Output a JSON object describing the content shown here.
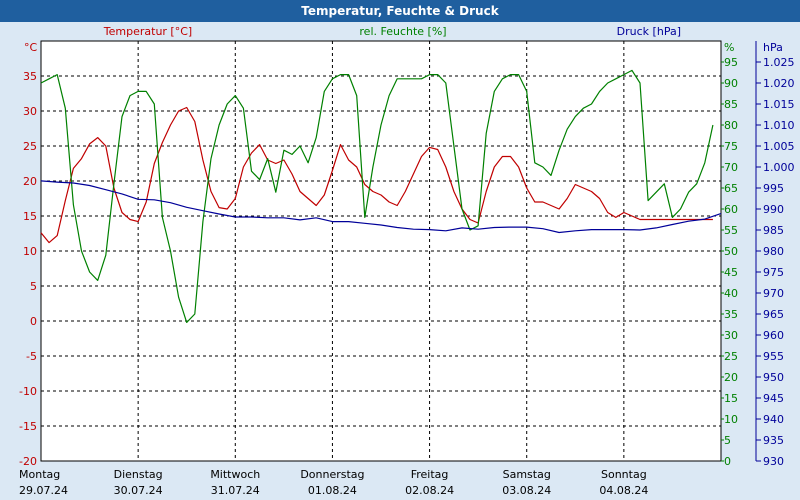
{
  "title": "Temperatur, Feuchte & Druck",
  "colors": {
    "title_bar": "#1f5f9f",
    "background": "#dbe8f4",
    "plot_background": "#ffffff",
    "temperature": "#c00000",
    "humidity": "#008000",
    "pressure": "#000099",
    "grid": "#000000"
  },
  "chart_data": {
    "type": "line",
    "title": "Temperatur, Feuchte & Druck",
    "grid": true,
    "x_range": [
      "29.07.24 00:00",
      "05.08.24 00:00"
    ],
    "x_days": [
      {
        "weekday": "Montag",
        "date": "29.07.24"
      },
      {
        "weekday": "Dienstag",
        "date": "30.07.24"
      },
      {
        "weekday": "Mittwoch",
        "date": "31.07.24"
      },
      {
        "weekday": "Donnerstag",
        "date": "01.08.24"
      },
      {
        "weekday": "Freitag",
        "date": "02.08.24"
      },
      {
        "weekday": "Samstag",
        "date": "03.08.24"
      },
      {
        "weekday": "Sonntag",
        "date": "04.08.24"
      }
    ],
    "axes": {
      "temperature": {
        "label": "Temperatur [°C]",
        "unit": "°C",
        "range": [
          -20,
          40
        ],
        "ticks": [
          -20,
          -15,
          -10,
          -5,
          0,
          5,
          10,
          15,
          20,
          25,
          30,
          35
        ]
      },
      "humidity": {
        "label": "rel. Feuchte [%]",
        "unit": "%",
        "range": [
          0,
          100
        ],
        "ticks": [
          0,
          5,
          10,
          15,
          20,
          25,
          30,
          35,
          40,
          45,
          50,
          55,
          60,
          65,
          70,
          75,
          80,
          85,
          90,
          95
        ]
      },
      "pressure": {
        "label": "Druck [hPa]",
        "unit": "hPa",
        "range": [
          930,
          1030
        ],
        "ticks": [
          "930",
          "935",
          "940",
          "945",
          "950",
          "955",
          "960",
          "965",
          "970",
          "975",
          "980",
          "985",
          "990",
          "995",
          "1.000",
          "1.005",
          "1.010",
          "1.015",
          "1.020",
          "1.025"
        ]
      }
    },
    "series": [
      {
        "name": "Temperatur [°C]",
        "axis": "temperature",
        "x": [
          "29.07.24 00:00",
          "29.07.24 02:00",
          "29.07.24 04:00",
          "29.07.24 06:00",
          "29.07.24 08:00",
          "29.07.24 10:00",
          "29.07.24 12:00",
          "29.07.24 14:00",
          "29.07.24 16:00",
          "29.07.24 18:00",
          "29.07.24 20:00",
          "29.07.24 22:00",
          "30.07.24 00:00",
          "30.07.24 02:00",
          "30.07.24 04:00",
          "30.07.24 06:00",
          "30.07.24 08:00",
          "30.07.24 10:00",
          "30.07.24 12:00",
          "30.07.24 14:00",
          "30.07.24 16:00",
          "30.07.24 18:00",
          "30.07.24 20:00",
          "30.07.24 22:00",
          "31.07.24 00:00",
          "31.07.24 02:00",
          "31.07.24 04:00",
          "31.07.24 06:00",
          "31.07.24 08:00",
          "31.07.24 10:00",
          "31.07.24 12:00",
          "31.07.24 14:00",
          "31.07.24 16:00",
          "31.07.24 18:00",
          "31.07.24 20:00",
          "31.07.24 22:00",
          "01.08.24 00:00",
          "01.08.24 02:00",
          "01.08.24 04:00",
          "01.08.24 06:00",
          "01.08.24 08:00",
          "01.08.24 10:00",
          "01.08.24 12:00",
          "01.08.24 14:00",
          "01.08.24 16:00",
          "01.08.24 18:00",
          "01.08.24 20:00",
          "01.08.24 22:00",
          "02.08.24 00:00",
          "02.08.24 02:00",
          "02.08.24 04:00",
          "02.08.24 06:00",
          "02.08.24 08:00",
          "02.08.24 10:00",
          "02.08.24 12:00",
          "02.08.24 14:00",
          "02.08.24 16:00",
          "02.08.24 18:00",
          "02.08.24 20:00",
          "02.08.24 22:00",
          "03.08.24 00:00",
          "03.08.24 02:00",
          "03.08.24 04:00",
          "03.08.24 06:00",
          "03.08.24 08:00",
          "03.08.24 10:00",
          "03.08.24 12:00",
          "03.08.24 14:00",
          "03.08.24 16:00",
          "03.08.24 18:00",
          "03.08.24 20:00",
          "03.08.24 22:00",
          "04.08.24 00:00",
          "04.08.24 02:00",
          "04.08.24 04:00",
          "04.08.24 06:00",
          "04.08.24 08:00",
          "04.08.24 10:00",
          "04.08.24 12:00",
          "04.08.24 14:00",
          "04.08.24 16:00",
          "04.08.24 18:00",
          "04.08.24 20:00",
          "04.08.24 22:00"
        ],
        "values": [
          12.6,
          11.2,
          12.2,
          17.2,
          21.8,
          23.2,
          25.3,
          26.2,
          25.0,
          19.0,
          15.5,
          14.5,
          14.2,
          17.0,
          22.5,
          25.5,
          28.0,
          30.0,
          30.5,
          28.5,
          23.0,
          18.5,
          16.2,
          16.0,
          17.5,
          22.0,
          24.0,
          25.2,
          23.0,
          22.5,
          23.0,
          21.0,
          18.5,
          17.5,
          16.5,
          18.0,
          21.5,
          25.2,
          23.0,
          22.0,
          19.5,
          18.5,
          18.0,
          17.0,
          16.5,
          18.5,
          21.0,
          23.5,
          24.8,
          24.5,
          22.0,
          18.5,
          16.0,
          14.5,
          14.0,
          18.5,
          22.0,
          23.5,
          23.5,
          22.0,
          19.0,
          17.0,
          17.0,
          16.5,
          16.0,
          17.5,
          19.5,
          19.0,
          18.5,
          17.5,
          15.5,
          14.8,
          15.5,
          15.0,
          14.5,
          14.5,
          14.5,
          14.5,
          14.5,
          14.5,
          14.5,
          14.5,
          14.5,
          14.5
        ]
      },
      {
        "name": "rel. Feuchte [%]",
        "axis": "humidity",
        "x": [
          "29.07.24 00:00",
          "29.07.24 02:00",
          "29.07.24 04:00",
          "29.07.24 06:00",
          "29.07.24 08:00",
          "29.07.24 10:00",
          "29.07.24 12:00",
          "29.07.24 14:00",
          "29.07.24 16:00",
          "29.07.24 18:00",
          "29.07.24 20:00",
          "29.07.24 22:00",
          "30.07.24 00:00",
          "30.07.24 02:00",
          "30.07.24 04:00",
          "30.07.24 06:00",
          "30.07.24 08:00",
          "30.07.24 10:00",
          "30.07.24 12:00",
          "30.07.24 14:00",
          "30.07.24 16:00",
          "30.07.24 18:00",
          "30.07.24 20:00",
          "30.07.24 22:00",
          "31.07.24 00:00",
          "31.07.24 02:00",
          "31.07.24 04:00",
          "31.07.24 06:00",
          "31.07.24 08:00",
          "31.07.24 10:00",
          "31.07.24 12:00",
          "31.07.24 14:00",
          "31.07.24 16:00",
          "31.07.24 18:00",
          "31.07.24 20:00",
          "31.07.24 22:00",
          "01.08.24 00:00",
          "01.08.24 02:00",
          "01.08.24 04:00",
          "01.08.24 06:00",
          "01.08.24 08:00",
          "01.08.24 10:00",
          "01.08.24 12:00",
          "01.08.24 14:00",
          "01.08.24 16:00",
          "01.08.24 18:00",
          "01.08.24 20:00",
          "01.08.24 22:00",
          "02.08.24 00:00",
          "02.08.24 02:00",
          "02.08.24 04:00",
          "02.08.24 06:00",
          "02.08.24 08:00",
          "02.08.24 10:00",
          "02.08.24 12:00",
          "02.08.24 14:00",
          "02.08.24 16:00",
          "02.08.24 18:00",
          "02.08.24 20:00",
          "02.08.24 22:00",
          "03.08.24 00:00",
          "03.08.24 02:00",
          "03.08.24 04:00",
          "03.08.24 06:00",
          "03.08.24 08:00",
          "03.08.24 10:00",
          "03.08.24 12:00",
          "03.08.24 14:00",
          "03.08.24 16:00",
          "03.08.24 18:00",
          "03.08.24 20:00",
          "03.08.24 22:00",
          "04.08.24 00:00",
          "04.08.24 02:00",
          "04.08.24 04:00",
          "04.08.24 06:00",
          "04.08.24 08:00",
          "04.08.24 10:00",
          "04.08.24 12:00",
          "04.08.24 14:00",
          "04.08.24 16:00",
          "04.08.24 18:00",
          "04.08.24 20:00",
          "04.08.24 22:00"
        ],
        "values": [
          90,
          91,
          92,
          84,
          61,
          50,
          45,
          43,
          49,
          66,
          82,
          87,
          88,
          88,
          85,
          58,
          50,
          39,
          33,
          35,
          57,
          72,
          80,
          85,
          87,
          84,
          69,
          67,
          72,
          64,
          74,
          73,
          75,
          71,
          77,
          88,
          91,
          92,
          92,
          87,
          58,
          70,
          80,
          87,
          91,
          91,
          91,
          91,
          92,
          92,
          90,
          75,
          60,
          55,
          56,
          78,
          88,
          91,
          92,
          92,
          88,
          71,
          70,
          68,
          74,
          79,
          82,
          84,
          85,
          88,
          90,
          91,
          92,
          93,
          90,
          62,
          64,
          66,
          58,
          60,
          64,
          66,
          71,
          80
        ]
      },
      {
        "name": "Druck [hPa]",
        "axis": "pressure",
        "x": [
          "29.07.24 00:00",
          "29.07.24 04:00",
          "29.07.24 08:00",
          "29.07.24 12:00",
          "29.07.24 16:00",
          "29.07.24 20:00",
          "30.07.24 00:00",
          "30.07.24 04:00",
          "30.07.24 08:00",
          "30.07.24 12:00",
          "30.07.24 16:00",
          "30.07.24 20:00",
          "31.07.24 00:00",
          "31.07.24 04:00",
          "31.07.24 08:00",
          "31.07.24 12:00",
          "31.07.24 16:00",
          "31.07.24 20:00",
          "01.08.24 00:00",
          "01.08.24 04:00",
          "01.08.24 08:00",
          "01.08.24 12:00",
          "01.08.24 16:00",
          "01.08.24 20:00",
          "02.08.24 00:00",
          "02.08.24 04:00",
          "02.08.24 08:00",
          "02.08.24 12:00",
          "02.08.24 16:00",
          "02.08.24 20:00",
          "03.08.24 00:00",
          "03.08.24 04:00",
          "03.08.24 08:00",
          "03.08.24 12:00",
          "03.08.24 16:00",
          "03.08.24 20:00",
          "04.08.24 00:00",
          "04.08.24 04:00",
          "04.08.24 08:00",
          "04.08.24 12:00",
          "04.08.24 16:00",
          "04.08.24 20:00",
          "04.08.24 23:59"
        ],
        "values": [
          996.7,
          996.4,
          996.2,
          995.6,
          994.6,
          993.6,
          992.3,
          992.2,
          991.5,
          990.4,
          989.6,
          988.8,
          988.1,
          988.1,
          987.9,
          987.9,
          987.4,
          987.9,
          987.0,
          987.0,
          986.6,
          986.2,
          985.6,
          985.2,
          985.1,
          984.8,
          985.5,
          985.2,
          985.6,
          985.7,
          985.7,
          985.3,
          984.4,
          984.8,
          985.1,
          985.1,
          985.1,
          985.0,
          985.5,
          986.3,
          987.1,
          987.6,
          988.9
        ]
      }
    ]
  }
}
